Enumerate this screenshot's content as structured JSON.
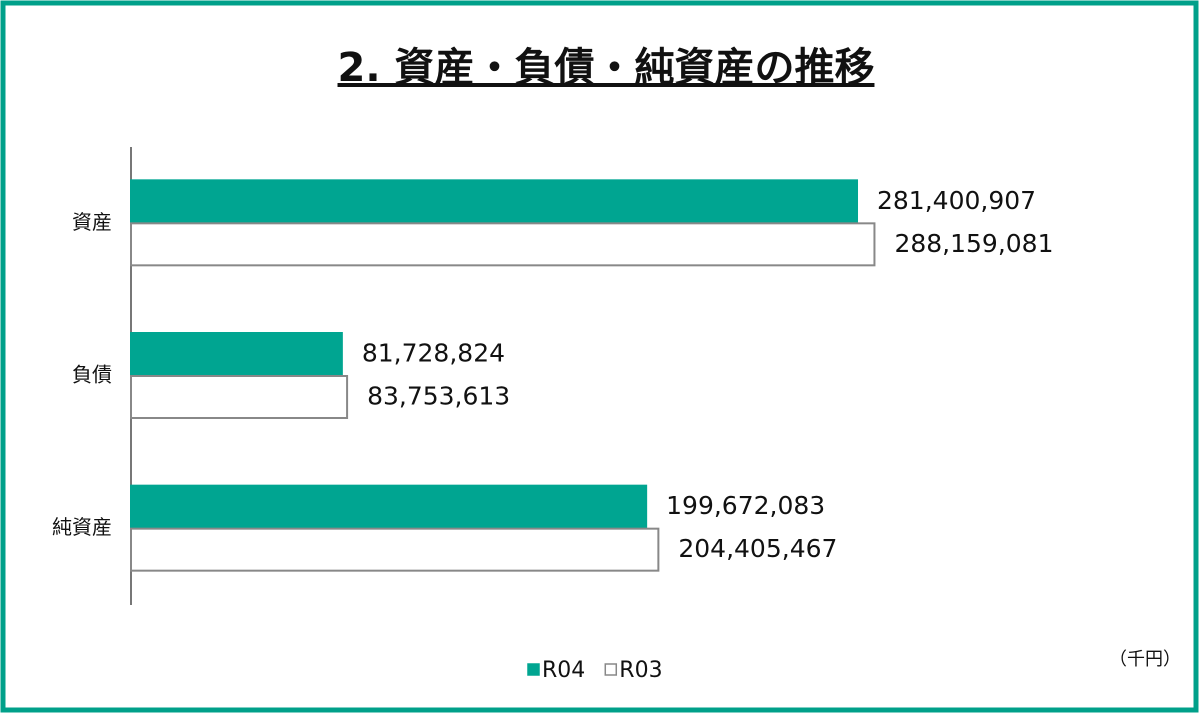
{
  "chart_data": {
    "type": "barh",
    "title": "2. 資産・負債・純資産の推移",
    "unit": "（千円）",
    "categories": [
      "資産",
      "負債",
      "純資産"
    ],
    "series": [
      {
        "name": "R04",
        "color": "#00a591",
        "values": [
          281400907,
          81728824,
          199672083
        ],
        "value_labels": [
          "281,400,907",
          "81,728,824",
          "199,672,083"
        ]
      },
      {
        "name": "R03",
        "color": "#ffffff",
        "values": [
          288159081,
          83753613,
          204405467
        ],
        "value_labels": [
          "288,159,081",
          "83,753,613",
          "204,405,467"
        ]
      }
    ],
    "xlim": [
      0,
      350000000
    ],
    "legend": "bottom"
  }
}
